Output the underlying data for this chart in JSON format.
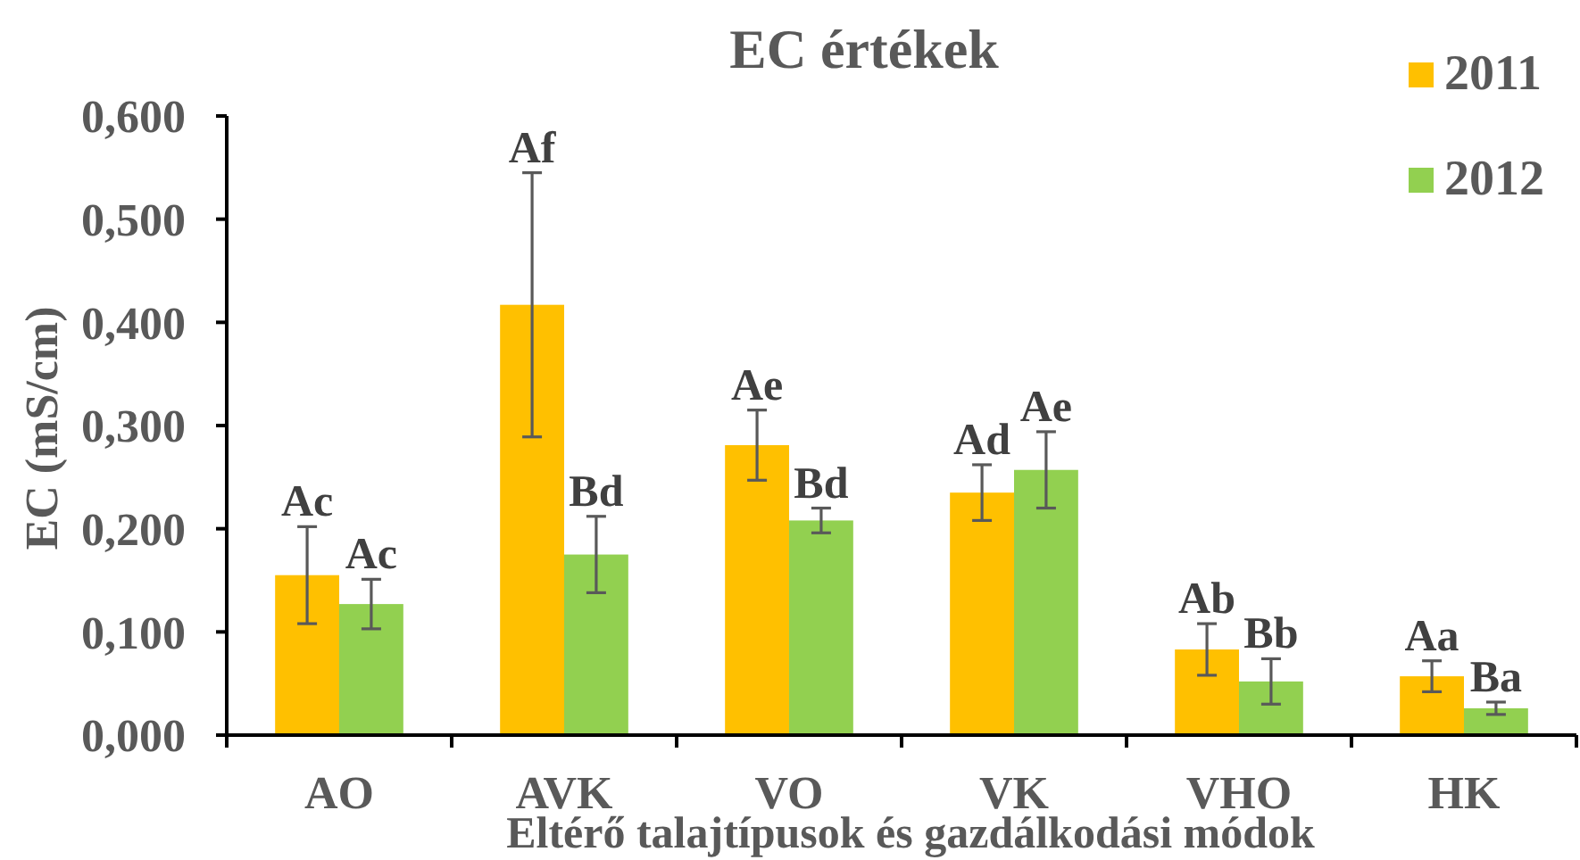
{
  "chart_data": {
    "type": "bar",
    "title": "EC értékek",
    "xlabel": "Eltérő talajtípusok és gazdálkodási módok",
    "ylabel": "EC (mS/cm)",
    "categories": [
      "AO",
      "AVK",
      "VO",
      "VK",
      "VHO",
      "HK"
    ],
    "series": [
      {
        "name": "2011",
        "color": "#ffc000",
        "values": [
          0.155,
          0.417,
          0.281,
          0.235,
          0.083,
          0.057
        ],
        "errors": [
          0.047,
          0.128,
          0.034,
          0.027,
          0.025,
          0.015
        ],
        "value_labels": [
          "Ac",
          "Af",
          "Ae",
          "Ad",
          "Ab",
          "Aa"
        ]
      },
      {
        "name": "2012",
        "color": "#92d050",
        "values": [
          0.127,
          0.175,
          0.208,
          0.257,
          0.052,
          0.026
        ],
        "errors": [
          0.024,
          0.037,
          0.012,
          0.037,
          0.022,
          0.006
        ],
        "value_labels": [
          "Ac",
          "Bd",
          "Bd",
          "Ae",
          "Bb",
          "Ba"
        ]
      }
    ],
    "ylim": [
      0,
      0.6
    ],
    "yticks": [
      {
        "value": 0,
        "label": "0,000"
      },
      {
        "value": 0.1,
        "label": "0,100"
      },
      {
        "value": 0.2,
        "label": "0,200"
      },
      {
        "value": 0.3,
        "label": "0,300"
      },
      {
        "value": 0.4,
        "label": "0,400"
      },
      {
        "value": 0.5,
        "label": "0,500"
      },
      {
        "value": 0.6,
        "label": "0,600"
      }
    ],
    "grid": false,
    "legend": "top right"
  }
}
